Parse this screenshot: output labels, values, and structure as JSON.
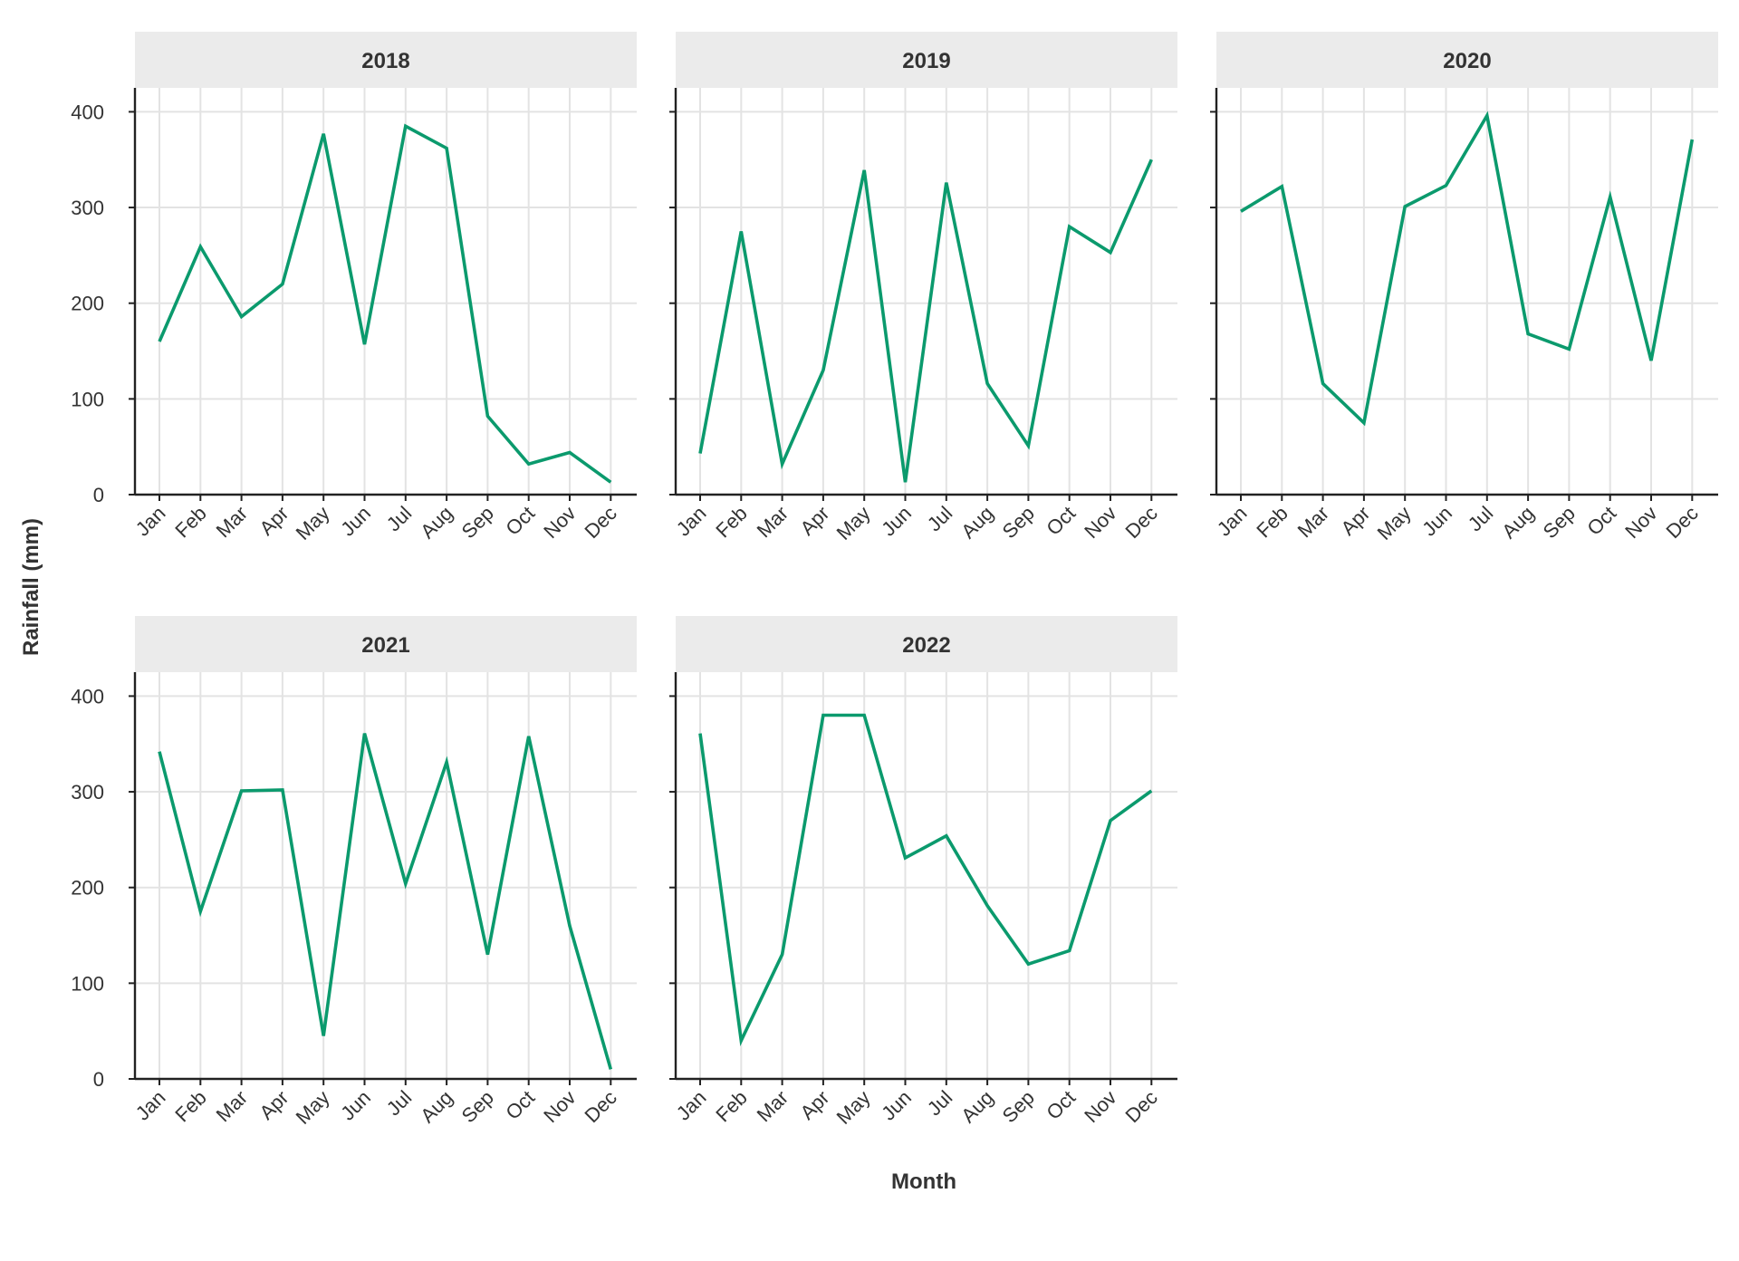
{
  "chart_data": {
    "type": "line",
    "facet_by": "year",
    "xlabel": "Month",
    "ylabel": "Rainfall (mm)",
    "categories": [
      "Jan",
      "Feb",
      "Mar",
      "Apr",
      "May",
      "Jun",
      "Jul",
      "Aug",
      "Sep",
      "Oct",
      "Nov",
      "Dec"
    ],
    "yticks": [
      0,
      100,
      200,
      300,
      400
    ],
    "ylim": [
      0,
      425
    ],
    "grid": true,
    "line_color": "#0b9a6d",
    "strip_color": "#ebebeb",
    "panels": [
      {
        "title": "2018",
        "values": [
          160,
          259,
          186,
          220,
          377,
          157,
          385,
          362,
          82,
          32,
          44,
          13
        ]
      },
      {
        "title": "2019",
        "values": [
          43,
          275,
          32,
          130,
          339,
          13,
          326,
          116,
          51,
          280,
          253,
          350
        ]
      },
      {
        "title": "2020",
        "values": [
          296,
          322,
          116,
          75,
          301,
          323,
          396,
          168,
          152,
          311,
          140,
          371
        ]
      },
      {
        "title": "2021",
        "values": [
          342,
          175,
          301,
          302,
          45,
          361,
          204,
          331,
          130,
          358,
          160,
          10
        ]
      },
      {
        "title": "2022",
        "values": [
          361,
          40,
          130,
          380,
          380,
          231,
          254,
          181,
          120,
          134,
          270,
          301
        ]
      }
    ]
  }
}
